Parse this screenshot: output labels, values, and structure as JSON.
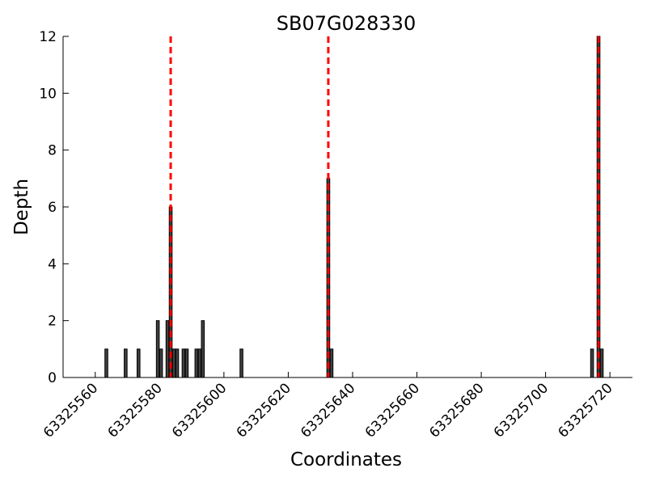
{
  "chart_data": {
    "type": "bar",
    "title": "SB07G028330",
    "xlabel": "Coordinates",
    "ylabel": "Depth",
    "xlim": [
      63325550,
      63325727
    ],
    "ylim": [
      0,
      12
    ],
    "xticks": [
      63325560,
      63325580,
      63325600,
      63325620,
      63325640,
      63325660,
      63325680,
      63325700,
      63325720
    ],
    "yticks": [
      0,
      2,
      4,
      6,
      8,
      10,
      12
    ],
    "bar_color": "#404040",
    "marker_color": "#ff0000",
    "grid": false,
    "bars": [
      {
        "x": 63325563,
        "y": 1
      },
      {
        "x": 63325569,
        "y": 1
      },
      {
        "x": 63325573,
        "y": 1
      },
      {
        "x": 63325579,
        "y": 2
      },
      {
        "x": 63325580,
        "y": 1
      },
      {
        "x": 63325582,
        "y": 2
      },
      {
        "x": 63325583,
        "y": 6
      },
      {
        "x": 63325584,
        "y": 1
      },
      {
        "x": 63325585,
        "y": 1
      },
      {
        "x": 63325587,
        "y": 1
      },
      {
        "x": 63325588,
        "y": 1
      },
      {
        "x": 63325591,
        "y": 1
      },
      {
        "x": 63325592,
        "y": 1
      },
      {
        "x": 63325593,
        "y": 2
      },
      {
        "x": 63325605,
        "y": 1
      },
      {
        "x": 63325632,
        "y": 7
      },
      {
        "x": 63325633,
        "y": 1
      },
      {
        "x": 63325714,
        "y": 1
      },
      {
        "x": 63325716,
        "y": 12
      },
      {
        "x": 63325717,
        "y": 1
      }
    ],
    "markers": [
      63325583.25,
      63325632.25,
      63325716.25
    ]
  }
}
